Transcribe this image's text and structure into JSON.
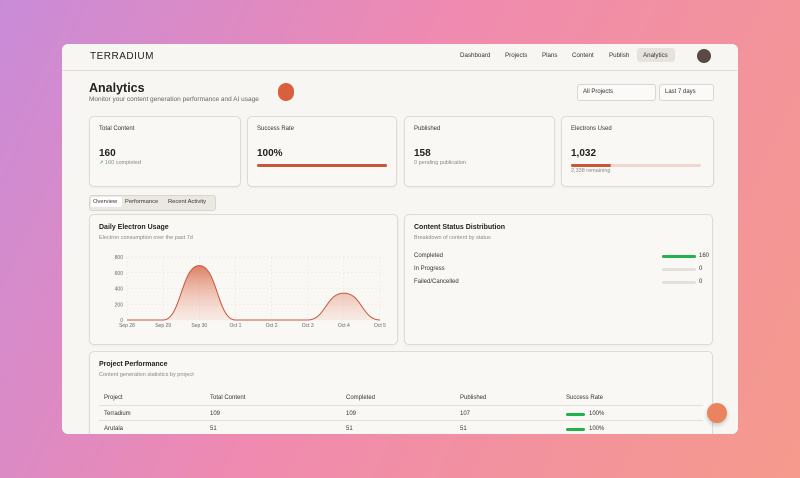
{
  "header": {
    "brand": "TERRADIUM",
    "nav": [
      "Dashboard",
      "Projects",
      "Plans",
      "Content",
      "Publish",
      "Analytics"
    ]
  },
  "page": {
    "title": "Analytics",
    "subtitle": "Monitor your content generation performance and AI usage",
    "filters": [
      "All Projects",
      "Last 7 days"
    ]
  },
  "cards": [
    {
      "label": "Total Content",
      "value": "160",
      "note": "160 completed"
    },
    {
      "label": "Success Rate",
      "value": 100,
      "value_label": "100%"
    },
    {
      "label": "Published",
      "value": "158",
      "note": "0 pending publication"
    },
    {
      "label": "Electrons Used",
      "value": 1032,
      "value_label": "1,032",
      "remaining": 2338,
      "remaining_label": "2,338 remaining"
    }
  ],
  "tabs": [
    "Overview",
    "Performance",
    "Recent Activity"
  ],
  "chart_data": {
    "type": "area",
    "title": "Daily Electron Usage",
    "subtitle": "Electron consumption over the past 7d",
    "categories": [
      "Sep 28",
      "Sep 29",
      "Sep 30",
      "Oct 1",
      "Oct 2",
      "Oct 3",
      "Oct 4",
      "Oct 5"
    ],
    "values": [
      0,
      0,
      690,
      0,
      0,
      0,
      342,
      0
    ],
    "color": "#c8573a",
    "ylim": [
      0,
      800
    ],
    "yticks": [
      0,
      200,
      400,
      600,
      800
    ],
    "grid": true
  },
  "status": {
    "title": "Content Status Distribution",
    "subtitle": "Breakdown of content by status",
    "rows": [
      {
        "label": "Completed",
        "value": 160
      },
      {
        "label": "In Progress",
        "value": 0
      },
      {
        "label": "Failed/Cancelled",
        "value": 0
      }
    ]
  },
  "table": {
    "title": "Project Performance",
    "subtitle": "Content generation statistics by project",
    "columns": [
      "Project",
      "Total Content",
      "Completed",
      "Published",
      "Success Rate"
    ],
    "rows": [
      {
        "project": "Terradium",
        "total": 109,
        "completed": 109,
        "published": 107,
        "rate": 100,
        "rate_label": "100%"
      },
      {
        "project": "Arutala",
        "total": 51,
        "completed": 51,
        "published": 51,
        "rate": 100,
        "rate_label": "100%"
      }
    ]
  }
}
